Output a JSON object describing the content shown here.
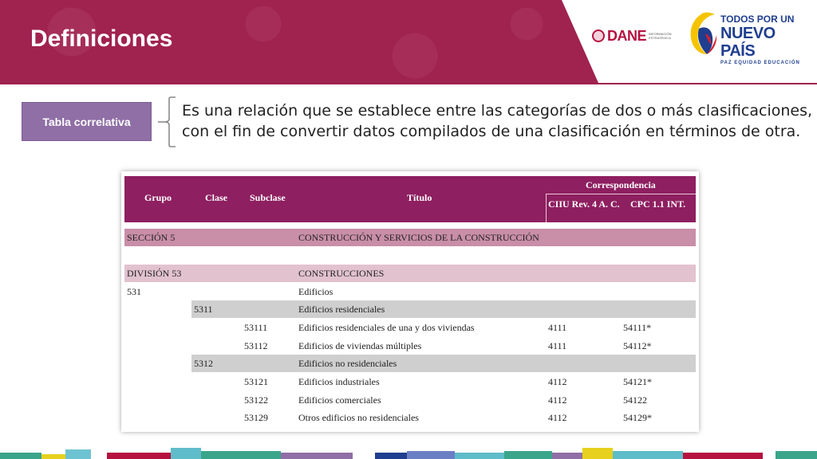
{
  "header": {
    "title": "Definiciones"
  },
  "logos": {
    "dane_word": "DANE",
    "dane_sub_1": "INFORMACIÓN",
    "dane_sub_2": "ESTRATÉGICA",
    "gov_line1": "TODOS POR UN",
    "gov_line2": "NUEVO PAÍS",
    "gov_tag": "PAZ  EQUIDAD  EDUCACIÓN"
  },
  "definition": {
    "term": "Tabla correlativa",
    "text_line1": "Es una relación que se establece entre las categorías de dos o más clasificaciones,",
    "text_line2": "con el fin de convertir datos compilados de una clasificación en términos de otra."
  },
  "table": {
    "headers": {
      "grupo": "Grupo",
      "clase": "Clase",
      "subclase": "Subclase",
      "titulo": "Título",
      "correspondencia": "Correspondencia",
      "ciiu": "CIIU Rev. 4 A. C.",
      "cpc": "CPC 1.1 INT."
    },
    "rows": [
      {
        "grupo": "SECCIÓN 5",
        "clase": "",
        "subclase": "",
        "titulo": "CONSTRUCCIÓN Y SERVICIOS DE LA CONSTRUCCIÓN",
        "ciiu": "",
        "cpc": ""
      },
      {
        "grupo": "DIVISIÓN 53",
        "clase": "",
        "subclase": "",
        "titulo": "CONSTRUCCIONES",
        "ciiu": "",
        "cpc": ""
      },
      {
        "grupo": "531",
        "clase": "",
        "subclase": "",
        "titulo": "Edificios",
        "ciiu": "",
        "cpc": ""
      },
      {
        "grupo": "",
        "clase": "5311",
        "subclase": "",
        "titulo": "Edificios residenciales",
        "ciiu": "",
        "cpc": ""
      },
      {
        "grupo": "",
        "clase": "",
        "subclase": "53111",
        "titulo": "Edificios residenciales de una y dos viviendas",
        "ciiu": "4111",
        "cpc": "54111*"
      },
      {
        "grupo": "",
        "clase": "",
        "subclase": "53112",
        "titulo": "Edificios de viviendas múltiples",
        "ciiu": "4111",
        "cpc": "54112*"
      },
      {
        "grupo": "",
        "clase": "5312",
        "subclase": "",
        "titulo": "Edificios no residenciales",
        "ciiu": "",
        "cpc": ""
      },
      {
        "grupo": "",
        "clase": "",
        "subclase": "53121",
        "titulo": "Edificios industriales",
        "ciiu": "4112",
        "cpc": "54121*"
      },
      {
        "grupo": "",
        "clase": "",
        "subclase": "53122",
        "titulo": "Edificios comerciales",
        "ciiu": "4112",
        "cpc": "54122"
      },
      {
        "grupo": "",
        "clase": "",
        "subclase": "53129",
        "titulo": "Otros edificios no residenciales",
        "ciiu": "4112",
        "cpc": "54129*"
      }
    ]
  },
  "colors": {
    "header_band": "#a0224f",
    "term_box": "#8f6fa6",
    "table_header": "#8e1f60",
    "seccion_row": "#c98ea8",
    "division_row": "#e2c2cf",
    "clase_row": "#cfcfcf"
  }
}
